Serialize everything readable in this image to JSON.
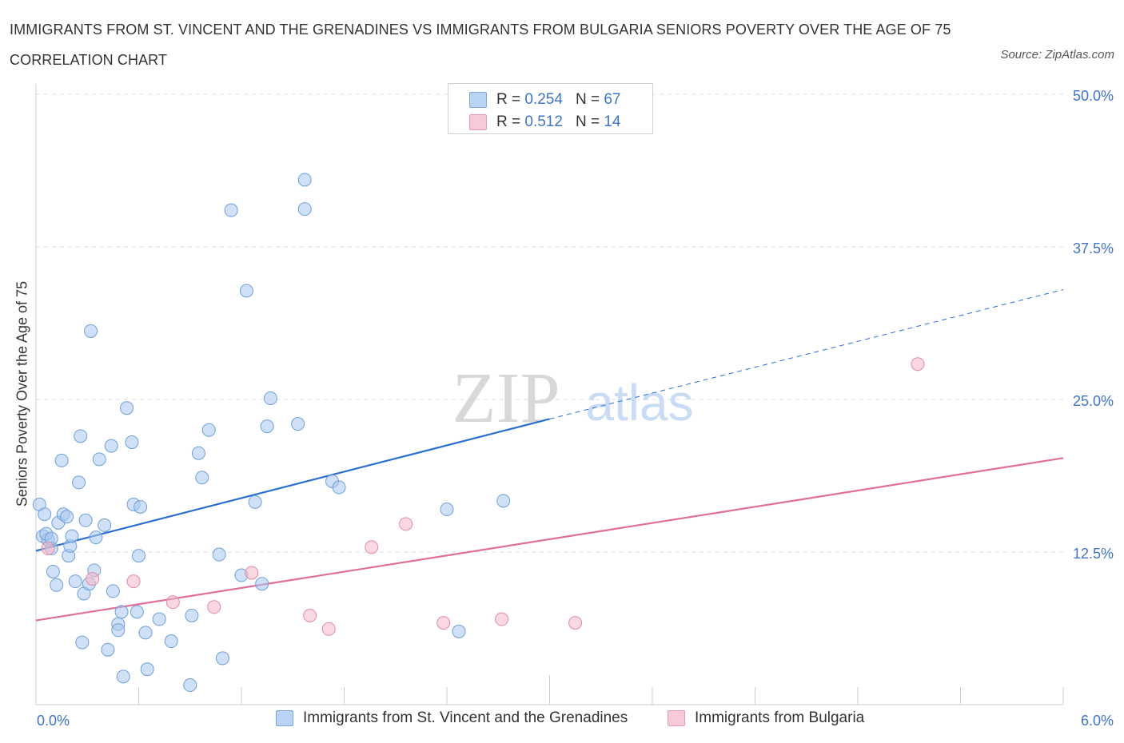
{
  "header": {
    "title": "IMMIGRANTS FROM ST. VINCENT AND THE GRENADINES VS IMMIGRANTS FROM BULGARIA SENIORS POVERTY OVER THE AGE OF 75 CORRELATION CHART",
    "source": "Source: ZipAtlas.com"
  },
  "watermark": {
    "zip": "ZIP",
    "atlas": "atlas"
  },
  "legend": {
    "rows": [
      {
        "r_label": "R =",
        "r_value": "0.254",
        "n_label": "N =",
        "n_value": "67"
      },
      {
        "r_label": "R =",
        "r_value": "0.512",
        "n_label": "N =",
        "n_value": "14"
      }
    ]
  },
  "colors": {
    "blue_fill": "#a9c8f0",
    "blue_stroke": "#6e9fd8",
    "blue_line": "#2b6fce",
    "pink_fill": "#f5b8c9",
    "pink_stroke": "#e08aa6",
    "pink_line": "#e06e97",
    "tick_label": "#3f74c9",
    "grid": "#dddddd"
  },
  "chart_data": {
    "type": "scatter",
    "title": "IMMIGRANTS FROM ST. VINCENT AND THE GRENADINES VS IMMIGRANTS FROM BULGARIA SENIORS POVERTY OVER THE AGE OF 75 CORRELATION CHART",
    "xlabel": "",
    "ylabel": "Seniors Poverty Over the Age of 75",
    "xlim": [
      0,
      6
    ],
    "ylim": [
      0,
      50
    ],
    "x_tick_labels": [
      "0.0%",
      "6.0%"
    ],
    "y_ticks": [
      12.5,
      25,
      37.5,
      50
    ],
    "y_tick_labels": [
      "12.5%",
      "25.0%",
      "37.5%",
      "50.0%"
    ],
    "grid": true,
    "legend_position": "top-center",
    "series": [
      {
        "name": "Immigrants from St. Vincent and the Grenadines",
        "color": "#a9c8f0",
        "r": 0.254,
        "n": 67,
        "trend": {
          "x": [
            0,
            3.0
          ],
          "y": [
            12.6,
            23.4
          ],
          "dashed_to": [
            6.0,
            34.0
          ]
        },
        "points": [
          [
            0.02,
            16.4
          ],
          [
            0.05,
            15.6
          ],
          [
            0.04,
            13.8
          ],
          [
            0.07,
            13.5
          ],
          [
            0.09,
            12.8
          ],
          [
            0.1,
            10.9
          ],
          [
            0.12,
            9.8
          ],
          [
            0.13,
            14.9
          ],
          [
            0.15,
            20.0
          ],
          [
            0.16,
            15.6
          ],
          [
            0.18,
            15.4
          ],
          [
            0.19,
            12.2
          ],
          [
            0.2,
            13.0
          ],
          [
            0.21,
            13.8
          ],
          [
            0.23,
            10.1
          ],
          [
            0.25,
            18.2
          ],
          [
            0.26,
            22.0
          ],
          [
            0.27,
            5.1
          ],
          [
            0.28,
            9.1
          ],
          [
            0.29,
            15.1
          ],
          [
            0.31,
            9.9
          ],
          [
            0.32,
            30.6
          ],
          [
            0.34,
            11.0
          ],
          [
            0.35,
            13.7
          ],
          [
            0.37,
            20.1
          ],
          [
            0.4,
            14.7
          ],
          [
            0.42,
            4.5
          ],
          [
            0.44,
            21.2
          ],
          [
            0.45,
            9.3
          ],
          [
            0.48,
            6.6
          ],
          [
            0.48,
            6.1
          ],
          [
            0.5,
            7.6
          ],
          [
            0.51,
            2.3
          ],
          [
            0.53,
            24.3
          ],
          [
            0.56,
            21.5
          ],
          [
            0.57,
            16.4
          ],
          [
            0.59,
            7.6
          ],
          [
            0.6,
            12.2
          ],
          [
            0.61,
            16.2
          ],
          [
            0.64,
            5.9
          ],
          [
            0.65,
            2.9
          ],
          [
            0.72,
            7.0
          ],
          [
            0.79,
            5.2
          ],
          [
            0.9,
            1.6
          ],
          [
            0.91,
            7.3
          ],
          [
            0.95,
            20.6
          ],
          [
            0.97,
            18.6
          ],
          [
            1.01,
            22.5
          ],
          [
            1.07,
            12.3
          ],
          [
            1.09,
            3.8
          ],
          [
            1.14,
            40.5
          ],
          [
            1.2,
            10.6
          ],
          [
            1.23,
            33.9
          ],
          [
            1.28,
            16.6
          ],
          [
            1.32,
            9.9
          ],
          [
            1.35,
            22.8
          ],
          [
            1.37,
            25.1
          ],
          [
            1.53,
            23.0
          ],
          [
            1.57,
            40.6
          ],
          [
            1.57,
            43.0
          ],
          [
            1.73,
            18.3
          ],
          [
            1.77,
            17.8
          ],
          [
            2.4,
            16.0
          ],
          [
            2.47,
            6.0
          ],
          [
            2.73,
            16.7
          ],
          [
            0.06,
            14.0
          ],
          [
            0.09,
            13.6
          ]
        ]
      },
      {
        "name": "Immigrants from Bulgaria",
        "color": "#f5b8c9",
        "r": 0.512,
        "n": 14,
        "trend": {
          "x": [
            0,
            6.0
          ],
          "y": [
            6.9,
            20.2
          ]
        },
        "points": [
          [
            0.07,
            12.8
          ],
          [
            0.33,
            10.3
          ],
          [
            0.57,
            10.1
          ],
          [
            0.8,
            8.4
          ],
          [
            1.04,
            8.0
          ],
          [
            1.26,
            10.8
          ],
          [
            1.6,
            7.3
          ],
          [
            1.71,
            6.2
          ],
          [
            1.96,
            12.9
          ],
          [
            2.16,
            14.8
          ],
          [
            2.38,
            6.7
          ],
          [
            2.72,
            7.0
          ],
          [
            3.15,
            6.7
          ],
          [
            5.15,
            27.9
          ]
        ]
      }
    ]
  }
}
